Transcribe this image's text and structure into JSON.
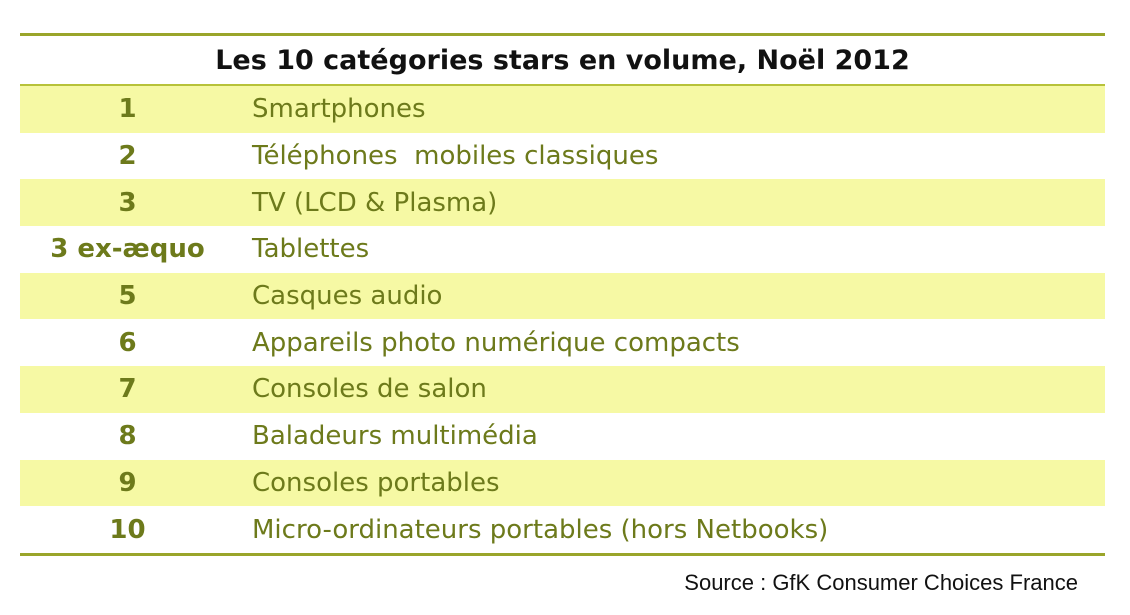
{
  "table": {
    "title": "Les 10 catégories stars en volume, Noël 2012",
    "rows": [
      {
        "rank": "1",
        "category": "Smartphones"
      },
      {
        "rank": "2",
        "category": "Téléphones  mobiles classiques"
      },
      {
        "rank": "3",
        "category": "TV (LCD & Plasma)"
      },
      {
        "rank": "3 ex-æquo",
        "category": "Tablettes"
      },
      {
        "rank": "5",
        "category": "Casques audio"
      },
      {
        "rank": "6",
        "category": "Appareils photo numérique compacts"
      },
      {
        "rank": "7",
        "category": "Consoles de salon"
      },
      {
        "rank": "8",
        "category": "Baladeurs multimédia"
      },
      {
        "rank": "9",
        "category": "Consoles portables"
      },
      {
        "rank": "10",
        "category": "Micro-ordinateurs portables (hors Netbooks)"
      }
    ]
  },
  "source": "Source : GfK Consumer Choices France",
  "colors": {
    "rule": "#9aa52a",
    "shade": "#f6f9a4",
    "text_accent": "#6d7a1b"
  }
}
